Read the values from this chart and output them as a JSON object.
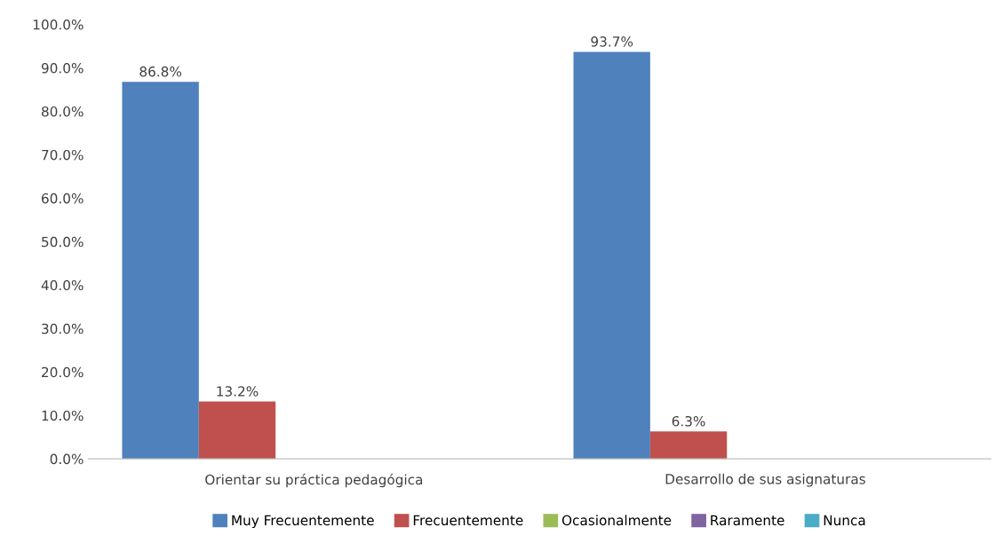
{
  "chart_data": {
    "type": "bar",
    "categories": [
      "Orientar su práctica pedagógica",
      "Desarrollo de sus asignaturas"
    ],
    "series": [
      {
        "name": "Muy Frecuentemente",
        "color": "#4f81bd",
        "values": [
          86.8,
          93.7
        ],
        "value_labels": [
          "86.8%",
          "93.7%"
        ]
      },
      {
        "name": "Frecuentemente",
        "color": "#c0504d",
        "values": [
          13.2,
          6.3
        ],
        "value_labels": [
          "13.2%",
          "6.3%"
        ]
      },
      {
        "name": "Ocasionalmente",
        "color": "#9bbb59",
        "values": [
          0,
          0
        ],
        "value_labels": [
          null,
          null
        ]
      },
      {
        "name": "Raramente",
        "color": "#8064a2",
        "values": [
          0,
          0
        ],
        "value_labels": [
          null,
          null
        ]
      },
      {
        "name": "Nunca",
        "color": "#4bacc6",
        "values": [
          0,
          0
        ],
        "value_labels": [
          null,
          null
        ]
      }
    ],
    "ylim": [
      0,
      100
    ],
    "yticks": [
      {
        "value": 0,
        "label": "0.0%"
      },
      {
        "value": 10,
        "label": "10.0%"
      },
      {
        "value": 20,
        "label": "20.0%"
      },
      {
        "value": 30,
        "label": "30.0%"
      },
      {
        "value": 40,
        "label": "40.0%"
      },
      {
        "value": 50,
        "label": "50.0%"
      },
      {
        "value": 60,
        "label": "60.0%"
      },
      {
        "value": 70,
        "label": "70.0%"
      },
      {
        "value": 80,
        "label": "80.0%"
      },
      {
        "value": 90,
        "label": "90.0%"
      },
      {
        "value": 100,
        "label": "100.0%"
      }
    ],
    "grid": false,
    "legend": "bottom"
  }
}
